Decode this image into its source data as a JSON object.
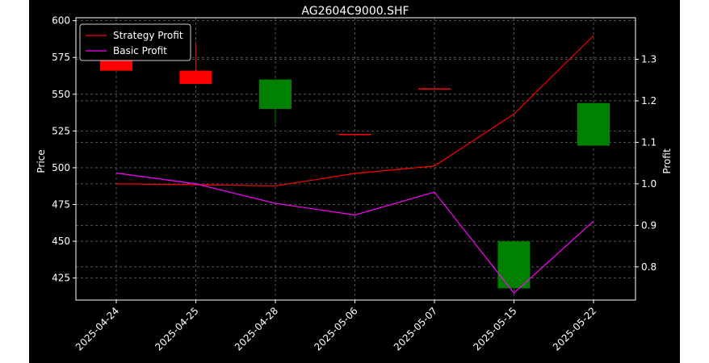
{
  "chart_data": {
    "type": "candlestick+line",
    "title": "AG2604C9000.SHF",
    "xlabel": "",
    "ylabel_left": "Price",
    "ylabel_right": "Profit",
    "categories": [
      "2025-04-24",
      "2025-04-25",
      "2025-04-28",
      "2025-05-06",
      "2025-05-07",
      "2025-05-15",
      "2025-05-22"
    ],
    "ylim_left": [
      410,
      602
    ],
    "yticks_left": [
      425,
      450,
      475,
      500,
      525,
      550,
      575,
      600
    ],
    "ylim_right": [
      0.72,
      1.4
    ],
    "yticks_right": [
      0.8,
      0.9,
      1.0,
      1.1,
      1.2,
      1.3
    ],
    "grid": true,
    "legend_position": "top-left",
    "candles": [
      {
        "date": "2025-04-24",
        "open": 576,
        "close": 566,
        "high": 576,
        "low": 566,
        "direction": "down"
      },
      {
        "date": "2025-04-25",
        "open": 566,
        "close": 557,
        "high": 585,
        "low": 557,
        "direction": "down"
      },
      {
        "date": "2025-04-28",
        "open": 540,
        "close": 560,
        "high": 560,
        "low": 530,
        "direction": "up"
      },
      {
        "date": "2025-05-06",
        "open": 523,
        "close": 523,
        "high": 523,
        "low": 523,
        "direction": "down"
      },
      {
        "date": "2025-05-07",
        "open": 554,
        "close": 554,
        "high": 554,
        "low": 554,
        "direction": "down"
      },
      {
        "date": "2025-05-15",
        "open": 418,
        "close": 450,
        "high": 450,
        "low": 418,
        "direction": "up"
      },
      {
        "date": "2025-05-22",
        "open": 515,
        "close": 544,
        "high": 544,
        "low": 515,
        "direction": "up"
      }
    ],
    "series": [
      {
        "name": "Strategy Profit",
        "color": "#ff0000",
        "values": [
          1.0,
          0.998,
          0.995,
          1.025,
          1.043,
          1.168,
          1.357
        ]
      },
      {
        "name": "Basic Profit",
        "color": "#ff00ff",
        "values": [
          1.026,
          1.0,
          0.953,
          0.925,
          0.98,
          0.737,
          0.91
        ]
      }
    ],
    "colors": {
      "up": "#008000",
      "down": "#ff0000",
      "background": "#000000",
      "axes": "#ffffff",
      "grid": "#666666"
    }
  }
}
